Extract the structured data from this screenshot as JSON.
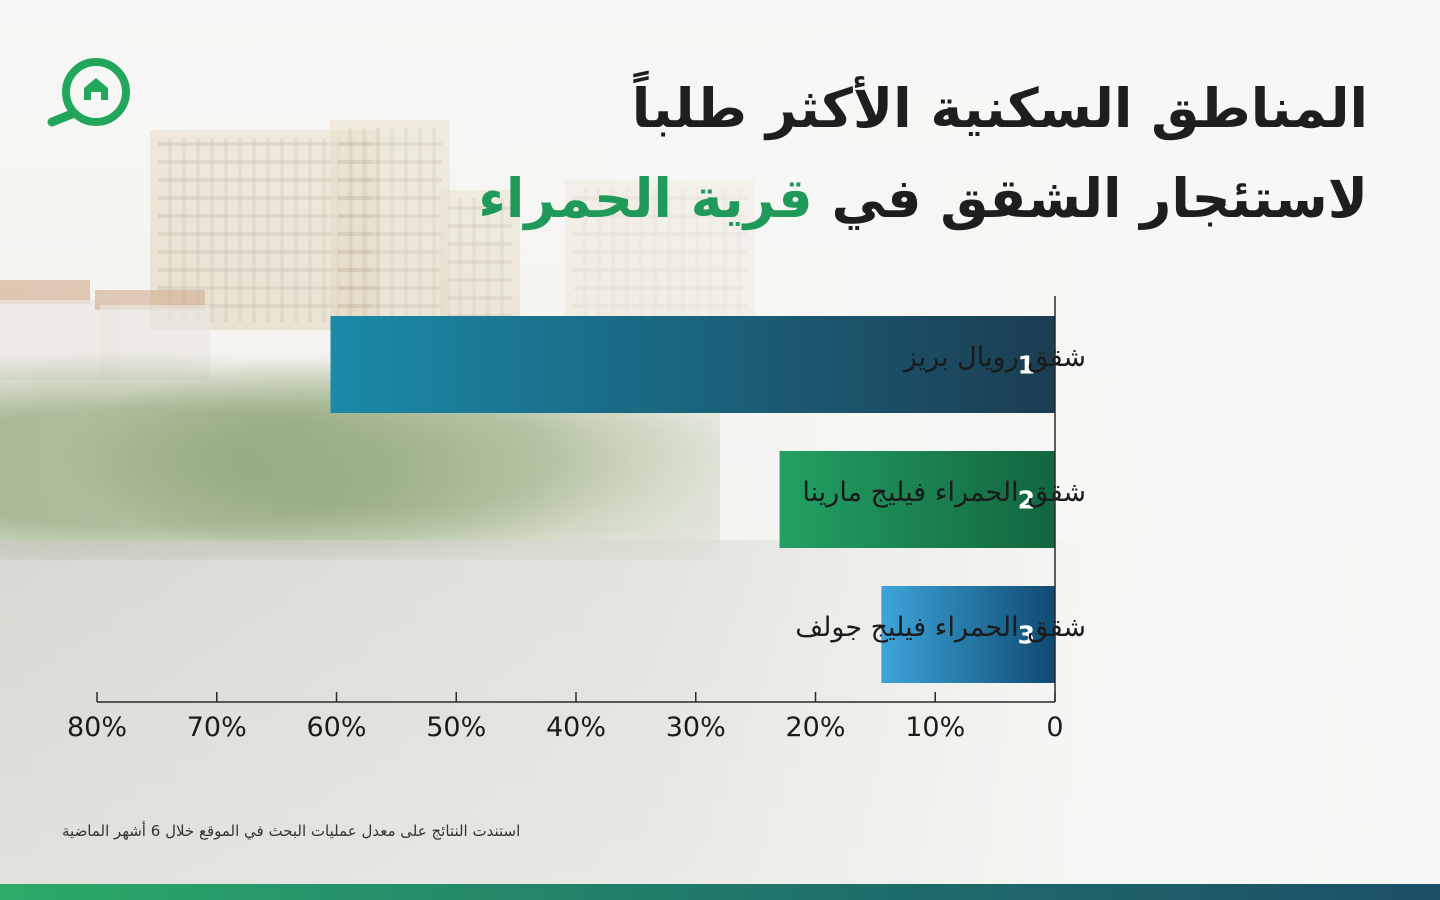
{
  "title": {
    "line1": "المناطق السكنية الأكثر طلباً",
    "line2_prefix": "لاستئجار الشقق في ",
    "line2_accent": "قرية الحمراء"
  },
  "colors": {
    "accent": "#1f9a5a",
    "bar1": [
      "#1a8aa8",
      "#1b3d52"
    ],
    "bar2": [
      "#23a063",
      "#12663e"
    ],
    "bar3": [
      "#3da5da",
      "#0f4a72"
    ]
  },
  "logo": {
    "icon": "house-search-icon",
    "color": "#22a65c"
  },
  "chart_data": {
    "type": "bar",
    "orientation": "horizontal",
    "direction": "rtl",
    "categories": [
      "شقق رويال بريز",
      "شقق الحمراء فيليج مارينا",
      "شقق الحمراء فيليج جولف"
    ],
    "ranks": [
      "1",
      "2",
      "3"
    ],
    "values": [
      60.5,
      23,
      14.5
    ],
    "xlim": [
      0,
      80
    ],
    "ticks": [
      0,
      10,
      20,
      30,
      40,
      50,
      60,
      70,
      80
    ],
    "tick_labels": [
      "0",
      "10%",
      "20%",
      "30%",
      "40%",
      "50%",
      "60%",
      "70%",
      "80%"
    ],
    "grid": false
  },
  "footnote": "استندت النتائج على معدل عمليات البحث في الموقع خلال 6 أشهر الماضية"
}
